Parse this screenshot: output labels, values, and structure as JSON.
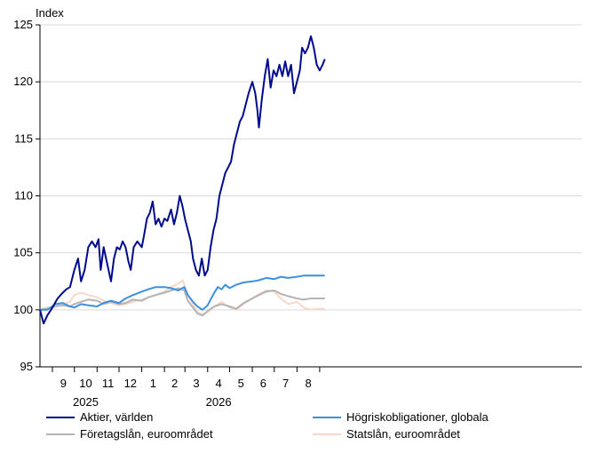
{
  "chart_data": {
    "type": "line",
    "ylabel": "Index",
    "ylim": [
      95,
      125
    ],
    "yticks": [
      95,
      100,
      105,
      110,
      115,
      120,
      125
    ],
    "x_start": "2024-08-15",
    "x_end": "2026-08-25",
    "x_month_labels": [
      {
        "label": "9",
        "month": "2024-09"
      },
      {
        "label": "10",
        "month": "2024-10"
      },
      {
        "label": "11",
        "month": "2024-11"
      },
      {
        "label": "12",
        "month": "2024-12"
      },
      {
        "label": "1",
        "month": "2025-01"
      },
      {
        "label": "2",
        "month": "2025-02"
      },
      {
        "label": "3",
        "month": "2025-03"
      },
      {
        "label": "4",
        "month": "2025-04"
      },
      {
        "label": "5",
        "month": "2025-05"
      },
      {
        "label": "6",
        "month": "2025-06"
      },
      {
        "label": "7",
        "month": "2025-07"
      },
      {
        "label": "8",
        "month": "2025-08"
      }
    ],
    "x_year_labels": [
      {
        "label": "2025",
        "month": "2024-10"
      },
      {
        "label": "2026",
        "month": "2025-04"
      }
    ],
    "grid": true,
    "legend": "bottom",
    "series": [
      {
        "name": "Aktier, världen",
        "color": "#000a8c",
        "points": [
          [
            "2024-08-15",
            100.0
          ],
          [
            "2024-08-20",
            98.8
          ],
          [
            "2024-08-25",
            99.5
          ],
          [
            "2024-09-01",
            100.2
          ],
          [
            "2024-09-08",
            101.0
          ],
          [
            "2024-09-15",
            101.5
          ],
          [
            "2024-09-20",
            101.8
          ],
          [
            "2024-09-25",
            102.0
          ],
          [
            "2024-10-01",
            103.5
          ],
          [
            "2024-10-06",
            104.5
          ],
          [
            "2024-10-10",
            102.5
          ],
          [
            "2024-10-15",
            103.5
          ],
          [
            "2024-10-20",
            105.5
          ],
          [
            "2024-10-25",
            106.0
          ],
          [
            "2024-10-30",
            105.5
          ],
          [
            "2024-11-03",
            106.2
          ],
          [
            "2024-11-06",
            103.5
          ],
          [
            "2024-11-10",
            105.5
          ],
          [
            "2024-11-15",
            104.0
          ],
          [
            "2024-11-20",
            102.5
          ],
          [
            "2024-11-24",
            104.5
          ],
          [
            "2024-11-28",
            105.5
          ],
          [
            "2024-12-02",
            105.3
          ],
          [
            "2024-12-06",
            106.0
          ],
          [
            "2024-12-10",
            105.5
          ],
          [
            "2024-12-14",
            104.2
          ],
          [
            "2024-12-17",
            103.5
          ],
          [
            "2024-12-21",
            105.5
          ],
          [
            "2024-12-26",
            106.0
          ],
          [
            "2025-01-01",
            105.5
          ],
          [
            "2025-01-04",
            106.5
          ],
          [
            "2025-01-08",
            108.0
          ],
          [
            "2025-01-12",
            108.5
          ],
          [
            "2025-01-16",
            109.5
          ],
          [
            "2025-01-20",
            107.5
          ],
          [
            "2025-01-24",
            108.0
          ],
          [
            "2025-01-28",
            107.3
          ],
          [
            "2025-02-01",
            108.0
          ],
          [
            "2025-02-05",
            107.8
          ],
          [
            "2025-02-10",
            108.8
          ],
          [
            "2025-02-14",
            107.5
          ],
          [
            "2025-02-18",
            108.5
          ],
          [
            "2025-02-22",
            110.0
          ],
          [
            "2025-02-26",
            109.0
          ],
          [
            "2025-03-01",
            108.0
          ],
          [
            "2025-03-05",
            107.0
          ],
          [
            "2025-03-09",
            106.0
          ],
          [
            "2025-03-12",
            104.5
          ],
          [
            "2025-03-16",
            103.5
          ],
          [
            "2025-03-20",
            103.0
          ],
          [
            "2025-03-24",
            104.5
          ],
          [
            "2025-03-28",
            103.0
          ],
          [
            "2025-04-01",
            103.5
          ],
          [
            "2025-04-05",
            105.5
          ],
          [
            "2025-04-09",
            107.0
          ],
          [
            "2025-04-13",
            108.0
          ],
          [
            "2025-04-17",
            110.0
          ],
          [
            "2025-04-21",
            111.0
          ],
          [
            "2025-04-25",
            112.0
          ],
          [
            "2025-04-29",
            112.5
          ],
          [
            "2025-05-03",
            113.0
          ],
          [
            "2025-05-07",
            114.5
          ],
          [
            "2025-05-11",
            115.5
          ],
          [
            "2025-05-15",
            116.5
          ],
          [
            "2025-05-19",
            117.0
          ],
          [
            "2025-05-23",
            118.0
          ],
          [
            "2025-05-27",
            119.0
          ],
          [
            "2025-06-01",
            120.0
          ],
          [
            "2025-06-05",
            119.0
          ],
          [
            "2025-06-08",
            117.5
          ],
          [
            "2025-06-10",
            116.0
          ],
          [
            "2025-06-14",
            118.5
          ],
          [
            "2025-06-18",
            120.5
          ],
          [
            "2025-06-22",
            122.0
          ],
          [
            "2025-06-26",
            119.5
          ],
          [
            "2025-06-30",
            121.0
          ],
          [
            "2025-07-04",
            120.5
          ],
          [
            "2025-07-08",
            121.5
          ],
          [
            "2025-07-12",
            120.5
          ],
          [
            "2025-07-16",
            121.8
          ],
          [
            "2025-07-20",
            120.5
          ],
          [
            "2025-07-24",
            121.5
          ],
          [
            "2025-07-28",
            119.0
          ],
          [
            "2025-08-01",
            120.0
          ],
          [
            "2025-08-05",
            121.0
          ],
          [
            "2025-08-08",
            123.0
          ],
          [
            "2025-08-12",
            122.5
          ],
          [
            "2025-08-16",
            123.0
          ],
          [
            "2025-08-20",
            124.0
          ],
          [
            "2025-08-24",
            123.0
          ],
          [
            "2025-08-28",
            121.5
          ],
          [
            "2025-09-01",
            121.0
          ],
          [
            "2025-09-05",
            121.5
          ],
          [
            "2025-09-08",
            122.0
          ]
        ]
      },
      {
        "name": "Högriskobligationer, globala",
        "color": "#3d8fe0",
        "points": [
          [
            "2024-08-15",
            100.0
          ],
          [
            "2024-08-25",
            100.0
          ],
          [
            "2024-09-05",
            100.5
          ],
          [
            "2024-09-15",
            100.6
          ],
          [
            "2024-09-25",
            100.3
          ],
          [
            "2024-10-01",
            100.2
          ],
          [
            "2024-10-10",
            100.5
          ],
          [
            "2024-10-20",
            100.4
          ],
          [
            "2024-11-01",
            100.3
          ],
          [
            "2024-11-10",
            100.6
          ],
          [
            "2024-11-20",
            100.8
          ],
          [
            "2024-12-01",
            100.6
          ],
          [
            "2024-12-10",
            101.0
          ],
          [
            "2024-12-20",
            101.3
          ],
          [
            "2025-01-01",
            101.6
          ],
          [
            "2025-01-10",
            101.8
          ],
          [
            "2025-01-20",
            102.0
          ],
          [
            "2025-02-01",
            102.0
          ],
          [
            "2025-02-10",
            101.9
          ],
          [
            "2025-02-20",
            101.7
          ],
          [
            "2025-02-28",
            102.0
          ],
          [
            "2025-03-05",
            101.3
          ],
          [
            "2025-03-12",
            100.7
          ],
          [
            "2025-03-18",
            100.3
          ],
          [
            "2025-03-25",
            100.0
          ],
          [
            "2025-04-01",
            100.4
          ],
          [
            "2025-04-05",
            100.9
          ],
          [
            "2025-04-10",
            101.5
          ],
          [
            "2025-04-15",
            102.0
          ],
          [
            "2025-04-20",
            101.8
          ],
          [
            "2025-04-25",
            102.2
          ],
          [
            "2025-05-01",
            101.9
          ],
          [
            "2025-05-10",
            102.2
          ],
          [
            "2025-05-20",
            102.4
          ],
          [
            "2025-06-01",
            102.5
          ],
          [
            "2025-06-10",
            102.6
          ],
          [
            "2025-06-20",
            102.8
          ],
          [
            "2025-07-01",
            102.7
          ],
          [
            "2025-07-10",
            102.9
          ],
          [
            "2025-07-20",
            102.8
          ],
          [
            "2025-08-01",
            102.9
          ],
          [
            "2025-08-10",
            103.0
          ],
          [
            "2025-08-20",
            103.0
          ],
          [
            "2025-09-01",
            103.0
          ],
          [
            "2025-09-08",
            103.0
          ]
        ]
      },
      {
        "name": "Företagslån, euroområdet",
        "color": "#b4b4b4",
        "points": [
          [
            "2024-08-15",
            100.0
          ],
          [
            "2024-08-25",
            100.1
          ],
          [
            "2024-09-05",
            100.3
          ],
          [
            "2024-09-15",
            100.4
          ],
          [
            "2024-09-25",
            100.3
          ],
          [
            "2024-10-01",
            100.5
          ],
          [
            "2024-10-10",
            100.7
          ],
          [
            "2024-10-20",
            100.9
          ],
          [
            "2024-11-01",
            100.8
          ],
          [
            "2024-11-10",
            100.5
          ],
          [
            "2024-11-20",
            100.7
          ],
          [
            "2024-12-01",
            100.5
          ],
          [
            "2024-12-10",
            100.6
          ],
          [
            "2024-12-20",
            100.9
          ],
          [
            "2025-01-01",
            100.8
          ],
          [
            "2025-01-10",
            101.1
          ],
          [
            "2025-01-20",
            101.3
          ],
          [
            "2025-02-01",
            101.5
          ],
          [
            "2025-02-10",
            101.7
          ],
          [
            "2025-02-20",
            101.9
          ],
          [
            "2025-02-28",
            101.7
          ],
          [
            "2025-03-05",
            100.8
          ],
          [
            "2025-03-12",
            100.2
          ],
          [
            "2025-03-18",
            99.7
          ],
          [
            "2025-03-25",
            99.5
          ],
          [
            "2025-04-01",
            99.9
          ],
          [
            "2025-04-10",
            100.3
          ],
          [
            "2025-04-20",
            100.5
          ],
          [
            "2025-05-01",
            100.3
          ],
          [
            "2025-05-10",
            100.1
          ],
          [
            "2025-05-20",
            100.6
          ],
          [
            "2025-06-01",
            101.0
          ],
          [
            "2025-06-10",
            101.3
          ],
          [
            "2025-06-20",
            101.6
          ],
          [
            "2025-07-01",
            101.7
          ],
          [
            "2025-07-10",
            101.4
          ],
          [
            "2025-07-20",
            101.2
          ],
          [
            "2025-08-01",
            101.0
          ],
          [
            "2025-08-10",
            100.9
          ],
          [
            "2025-08-20",
            101.0
          ],
          [
            "2025-09-01",
            101.0
          ],
          [
            "2025-09-08",
            101.0
          ]
        ]
      },
      {
        "name": "Statslån, euroområdet",
        "color": "#f9d8c7",
        "points": [
          [
            "2024-08-15",
            100.0
          ],
          [
            "2024-08-25",
            100.2
          ],
          [
            "2024-09-05",
            100.3
          ],
          [
            "2024-09-15",
            100.5
          ],
          [
            "2024-09-25",
            100.7
          ],
          [
            "2024-10-01",
            101.3
          ],
          [
            "2024-10-10",
            101.5
          ],
          [
            "2024-10-20",
            101.3
          ],
          [
            "2024-11-01",
            101.1
          ],
          [
            "2024-11-10",
            100.8
          ],
          [
            "2024-11-20",
            100.6
          ],
          [
            "2024-12-01",
            100.4
          ],
          [
            "2024-12-10",
            100.5
          ],
          [
            "2024-12-20",
            100.7
          ],
          [
            "2025-01-01",
            100.9
          ],
          [
            "2025-01-10",
            101.1
          ],
          [
            "2025-01-20",
            101.3
          ],
          [
            "2025-02-01",
            101.6
          ],
          [
            "2025-02-10",
            102.0
          ],
          [
            "2025-02-20",
            102.3
          ],
          [
            "2025-02-26",
            102.6
          ],
          [
            "2025-03-05",
            101.3
          ],
          [
            "2025-03-12",
            100.5
          ],
          [
            "2025-03-18",
            99.8
          ],
          [
            "2025-03-25",
            99.6
          ],
          [
            "2025-04-01",
            99.8
          ],
          [
            "2025-04-10",
            100.3
          ],
          [
            "2025-04-20",
            100.7
          ],
          [
            "2025-05-01",
            100.2
          ],
          [
            "2025-05-10",
            100.0
          ],
          [
            "2025-05-20",
            100.5
          ],
          [
            "2025-06-01",
            101.0
          ],
          [
            "2025-06-10",
            101.4
          ],
          [
            "2025-06-20",
            101.7
          ],
          [
            "2025-07-01",
            101.6
          ],
          [
            "2025-07-10",
            101.0
          ],
          [
            "2025-07-20",
            100.5
          ],
          [
            "2025-08-01",
            100.7
          ],
          [
            "2025-08-10",
            100.2
          ],
          [
            "2025-08-20",
            100.0
          ],
          [
            "2025-09-01",
            100.1
          ],
          [
            "2025-09-08",
            100.1
          ]
        ]
      }
    ]
  }
}
